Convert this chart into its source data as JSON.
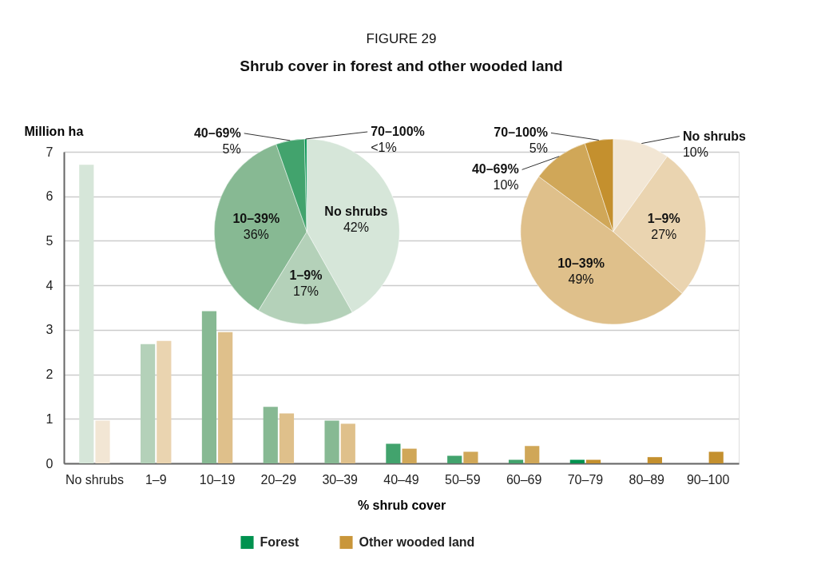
{
  "chart_data": [
    {
      "type": "bar",
      "title": "FIGURE 29",
      "subtitle": "Shrub cover in forest and other wooded land",
      "xlabel": "% shrub cover",
      "ylabel": "Million ha",
      "categories": [
        "No shrubs",
        "1–9",
        "10–19",
        "20–29",
        "30–39",
        "40–49",
        "50–59",
        "60–69",
        "70–79",
        "80–89",
        "90–100"
      ],
      "series": [
        {
          "name": "Forest",
          "color": "#00924f",
          "values": [
            6.71,
            2.68,
            3.42,
            1.27,
            0.96,
            0.44,
            0.17,
            0.08,
            0.08,
            null,
            null
          ],
          "colors": [
            "#d6e6d9",
            "#b4d1b9",
            "#87b993",
            "#87b993",
            "#87b993",
            "#42a36d",
            "#42a36d",
            "#42a36d",
            "#00924f",
            "#00924f",
            "#00924f"
          ]
        },
        {
          "name": "Other wooded land",
          "color": "#c9963a",
          "values": [
            0.96,
            2.75,
            2.95,
            1.12,
            0.89,
            0.33,
            0.26,
            0.39,
            0.08,
            0.14,
            0.26
          ],
          "colors": [
            "#f2e6d4",
            "#ead4b0",
            "#dfc08b",
            "#dfc08b",
            "#dfc08b",
            "#d0a758",
            "#d0a758",
            "#d0a758",
            "#c4902e",
            "#c4902e",
            "#c4902e"
          ]
        }
      ],
      "ylim": [
        0,
        7
      ],
      "yticks": [
        0,
        1,
        2,
        3,
        4,
        5,
        6,
        7
      ],
      "grid": "y",
      "legend": "bottom"
    },
    {
      "type": "pie",
      "categories": [
        "No shrubs",
        "1–9%",
        "10–39%",
        "40–69%",
        "70–100%"
      ],
      "values": [
        42,
        17,
        36,
        5,
        0.4
      ],
      "value_labels": [
        "42%",
        "17%",
        "36%",
        "5%",
        "<1%"
      ],
      "colors": [
        "#d6e6d9",
        "#b4d1b9",
        "#87b993",
        "#42a36d",
        "#00924f"
      ]
    },
    {
      "type": "pie",
      "categories": [
        "No shrubs",
        "1–9%",
        "10–39%",
        "40–69%",
        "70–100%"
      ],
      "values": [
        10,
        27,
        49,
        10,
        5
      ],
      "value_labels": [
        "10%",
        "27%",
        "49%",
        "10%",
        "5%"
      ],
      "colors": [
        "#f2e6d4",
        "#ead4b0",
        "#dfc08b",
        "#d0a758",
        "#c4902e"
      ]
    }
  ]
}
